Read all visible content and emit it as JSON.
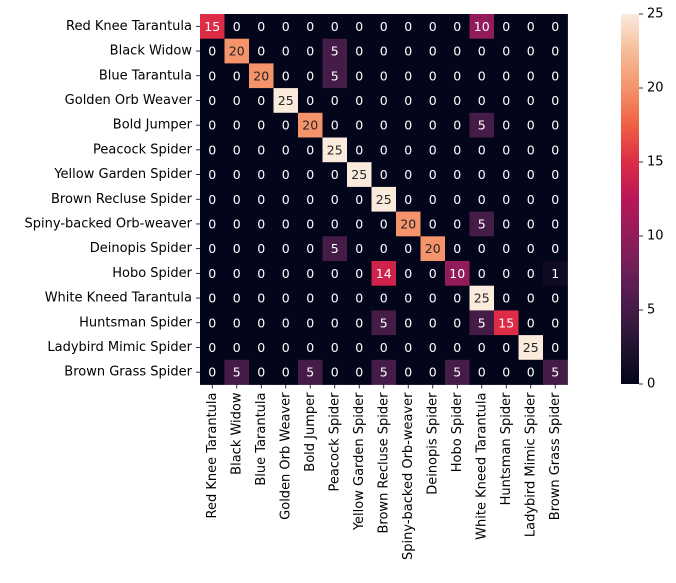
{
  "chart_data": {
    "type": "heatmap",
    "title": "",
    "xlabel": "",
    "ylabel": "",
    "colormap": "rocket",
    "row_labels": [
      "Red Knee Tarantula",
      "Black Widow",
      "Blue Tarantula",
      "Golden Orb Weaver",
      "Bold Jumper",
      "Peacock Spider",
      "Yellow Garden Spider",
      "Brown Recluse Spider",
      "Spiny-backed Orb-weaver",
      "Deinopis Spider",
      "Hobo Spider",
      "White Kneed Tarantula",
      "Huntsman Spider",
      "Ladybird Mimic Spider",
      "Brown Grass Spider"
    ],
    "col_labels": [
      "Red Knee Tarantula",
      "Black Widow",
      "Blue Tarantula",
      "Golden Orb Weaver",
      "Bold Jumper",
      "Peacock Spider",
      "Yellow Garden Spider",
      "Brown Recluse Spider",
      "Spiny-backed Orb-weaver",
      "Deinopis Spider",
      "Hobo Spider",
      "White Kneed Tarantula",
      "Huntsman Spider",
      "Ladybird Mimic Spider",
      "Brown Grass Spider"
    ],
    "values": [
      [
        15,
        0,
        0,
        0,
        0,
        0,
        0,
        0,
        0,
        0,
        0,
        10,
        0,
        0,
        0
      ],
      [
        0,
        20,
        0,
        0,
        0,
        5,
        0,
        0,
        0,
        0,
        0,
        0,
        0,
        0,
        0
      ],
      [
        0,
        0,
        20,
        0,
        0,
        5,
        0,
        0,
        0,
        0,
        0,
        0,
        0,
        0,
        0
      ],
      [
        0,
        0,
        0,
        25,
        0,
        0,
        0,
        0,
        0,
        0,
        0,
        0,
        0,
        0,
        0
      ],
      [
        0,
        0,
        0,
        0,
        20,
        0,
        0,
        0,
        0,
        0,
        0,
        5,
        0,
        0,
        0
      ],
      [
        0,
        0,
        0,
        0,
        0,
        25,
        0,
        0,
        0,
        0,
        0,
        0,
        0,
        0,
        0
      ],
      [
        0,
        0,
        0,
        0,
        0,
        0,
        25,
        0,
        0,
        0,
        0,
        0,
        0,
        0,
        0
      ],
      [
        0,
        0,
        0,
        0,
        0,
        0,
        0,
        25,
        0,
        0,
        0,
        0,
        0,
        0,
        0
      ],
      [
        0,
        0,
        0,
        0,
        0,
        0,
        0,
        0,
        20,
        0,
        0,
        5,
        0,
        0,
        0
      ],
      [
        0,
        0,
        0,
        0,
        0,
        5,
        0,
        0,
        0,
        20,
        0,
        0,
        0,
        0,
        0
      ],
      [
        0,
        0,
        0,
        0,
        0,
        0,
        0,
        14,
        0,
        0,
        10,
        0,
        0,
        0,
        1
      ],
      [
        0,
        0,
        0,
        0,
        0,
        0,
        0,
        0,
        0,
        0,
        0,
        25,
        0,
        0,
        0
      ],
      [
        0,
        0,
        0,
        0,
        0,
        0,
        0,
        5,
        0,
        0,
        0,
        5,
        15,
        0,
        0
      ],
      [
        0,
        0,
        0,
        0,
        0,
        0,
        0,
        0,
        0,
        0,
        0,
        0,
        0,
        25,
        0
      ],
      [
        0,
        5,
        0,
        0,
        5,
        0,
        0,
        5,
        0,
        0,
        5,
        0,
        0,
        0,
        5
      ]
    ],
    "vmin": 0,
    "vmax": 25,
    "colorbar_ticks": [
      0,
      5,
      10,
      15,
      20,
      25
    ],
    "colorbar": true,
    "annotations": true
  }
}
